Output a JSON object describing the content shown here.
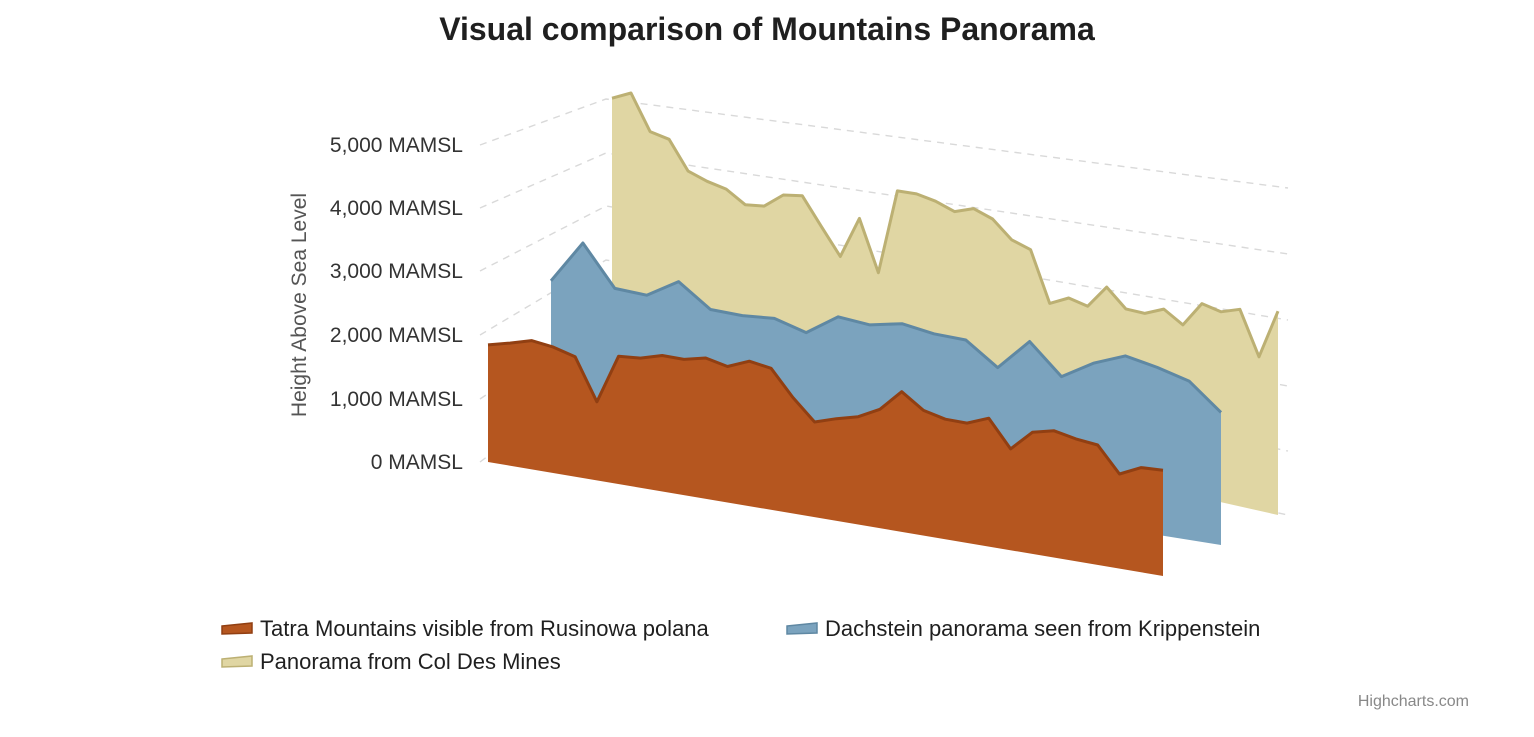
{
  "chart_data": {
    "type": "area",
    "title": "Visual comparison of Mountains Panorama",
    "ylabel": "Height Above Sea Level",
    "ylim": [
      0,
      5000
    ],
    "yticks": [
      0,
      1000,
      2000,
      3000,
      4000,
      5000
    ],
    "ytick_labels": [
      "0 MAMSL",
      "1,000 MAMSL",
      "2,000 MAMSL",
      "3,000 MAMSL",
      "4,000 MAMSL",
      "5,000 MAMSL"
    ],
    "grid": true,
    "legend_position": "bottom",
    "three_d": true,
    "series": [
      {
        "name": "Panorama from Col Des Mines",
        "color": "#e0d6a3",
        "stroke": "#bcb073",
        "values": [
          4600,
          4750,
          4150,
          4080,
          3600,
          3490,
          3420,
          3220,
          3260,
          3510,
          3560,
          3110,
          2670,
          3370,
          2530,
          3950,
          3960,
          3900,
          3790,
          3900,
          3790,
          3510,
          3410,
          2600,
          2750,
          2680,
          3050,
          2760,
          2750,
          2880,
          2690,
          3090,
          3020,
          3120,
          2430,
          3210
        ]
      },
      {
        "name": "Dachstein panorama seen from Krippenstein",
        "color": "#7ba3be",
        "stroke": "#5f88a3",
        "values": [
          2400,
          3050,
          2430,
          2400,
          2680,
          2330,
          2310,
          2340,
          2200,
          2510,
          2460,
          2550,
          2470,
          2450,
          2110,
          2570,
          2120,
          2390,
          2570,
          2470,
          2340,
          1950
        ]
      },
      {
        "name": "Tatra Mountains visible from Rusinowa polana",
        "color": "#b5561f",
        "stroke": "#913f12",
        "values": [
          1850,
          1930,
          2020,
          1970,
          1870,
          1220,
          1980,
          2000,
          2090,
          2080,
          2150,
          2070,
          2200,
          2140,
          1750,
          1430,
          1530,
          1610,
          1770,
          2080,
          1850,
          1770,
          1760,
          1880,
          1480,
          1770,
          1840,
          1770,
          1730,
          1360,
          1500,
          1510
        ]
      }
    ],
    "legend": [
      "Tatra Mountains visible from Rusinowa polana",
      "Dachstein panorama seen from Krippenstein",
      "Panorama from Col Des Mines"
    ],
    "credits": "Highcharts.com"
  }
}
